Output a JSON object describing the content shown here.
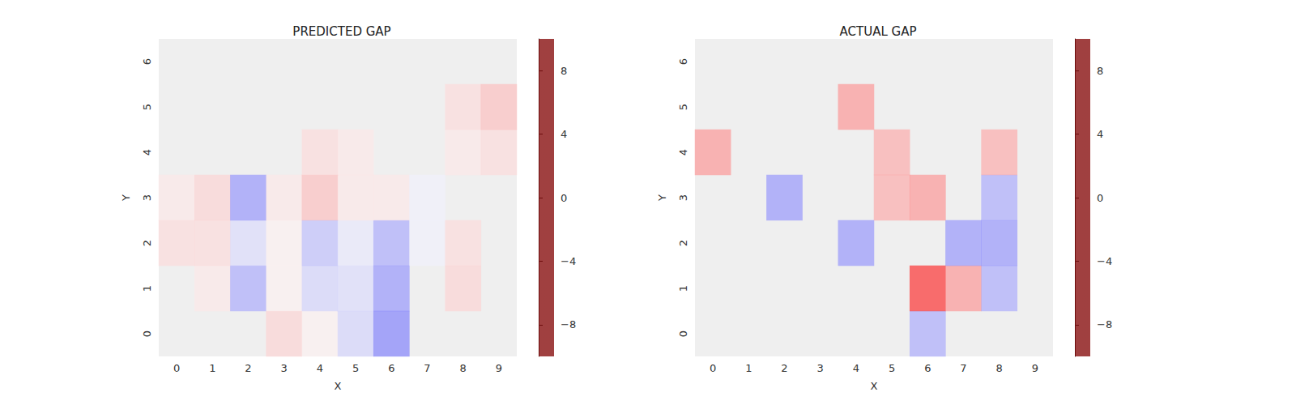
{
  "chart_data": [
    {
      "type": "heatmap",
      "title": "PREDICTED GAP",
      "x_label": "X",
      "y_label": "Y",
      "x": [
        0,
        1,
        2,
        3,
        4,
        5,
        6,
        7,
        8,
        9
      ],
      "y": [
        0,
        1,
        2,
        3,
        4,
        5,
        6
      ],
      "cells": [
        [
          null,
          null,
          null,
          1,
          0.3,
          -1,
          -3,
          null,
          null,
          null
        ],
        [
          null,
          0.5,
          -2,
          0.3,
          -1,
          -0.8,
          -2.5,
          null,
          1,
          null
        ],
        [
          0.8,
          0.8,
          -0.8,
          0.3,
          -1.5,
          -0.5,
          -2,
          -0.3,
          0.8,
          null
        ],
        [
          0.5,
          1,
          -2.5,
          0.5,
          1.5,
          0.5,
          0.5,
          -0.3,
          null,
          null
        ],
        [
          null,
          null,
          null,
          null,
          0.8,
          0.5,
          null,
          null,
          0.5,
          0.8
        ],
        [
          null,
          null,
          null,
          null,
          null,
          null,
          null,
          null,
          0.8,
          1.5
        ],
        [
          null,
          null,
          null,
          null,
          null,
          null,
          null,
          null,
          null,
          null
        ]
      ],
      "colorbar": {
        "range": [
          -10,
          10
        ],
        "ticks": [
          -8,
          -4,
          0,
          4,
          8
        ]
      }
    },
    {
      "type": "heatmap",
      "title": "ACTUAL GAP",
      "x_label": "X",
      "y_label": "Y",
      "x": [
        0,
        1,
        2,
        3,
        4,
        5,
        6,
        7,
        8,
        9
      ],
      "y": [
        0,
        1,
        2,
        3,
        4,
        5,
        6
      ],
      "cells": [
        [
          null,
          null,
          null,
          null,
          null,
          null,
          -2,
          null,
          null,
          null
        ],
        [
          null,
          null,
          null,
          null,
          null,
          null,
          5,
          2.5,
          -2,
          null
        ],
        [
          null,
          null,
          null,
          null,
          -2.5,
          null,
          null,
          -2.5,
          -2.5,
          null
        ],
        [
          null,
          null,
          -2.5,
          null,
          null,
          2,
          2.5,
          null,
          -2,
          null
        ],
        [
          2.5,
          null,
          null,
          null,
          null,
          2,
          null,
          null,
          2,
          null
        ],
        [
          null,
          null,
          null,
          null,
          2.5,
          null,
          null,
          null,
          null,
          null
        ],
        [
          null,
          null,
          null,
          null,
          null,
          null,
          null,
          null,
          null,
          null
        ]
      ],
      "colorbar": {
        "range": [
          -10,
          10
        ],
        "ticks": [
          -8,
          -4,
          0,
          4,
          8
        ]
      }
    }
  ]
}
